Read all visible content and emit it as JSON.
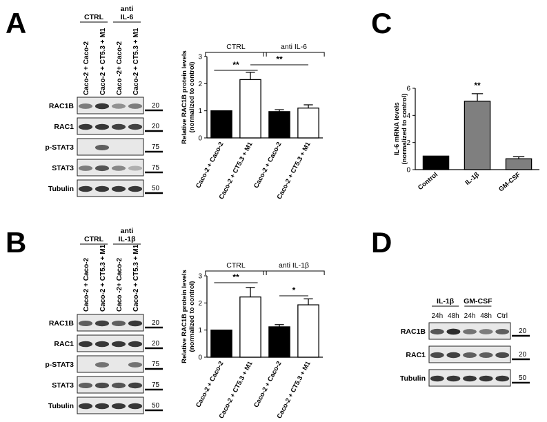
{
  "panels": {
    "A": {
      "letter": "A",
      "group_labels": [
        "CTRL",
        "anti\nIL-6"
      ],
      "lane_labels": [
        "Caco-2 + Caco-2",
        "Caco-2 + CT5.3 + M1",
        "Caco -2+ Caco-2",
        "Caco-2 + CT5.3 + M1"
      ],
      "blots": [
        {
          "label": "RAC1B",
          "marker": "20"
        },
        {
          "label": "RAC1",
          "marker": "20"
        },
        {
          "label": "p-STAT3",
          "marker": "75"
        },
        {
          "label": "STAT3",
          "marker": "75"
        },
        {
          "label": "Tubulin",
          "marker": "50"
        }
      ]
    },
    "B": {
      "letter": "B",
      "group_labels": [
        "CTRL",
        "anti\nIL-1β"
      ],
      "lane_labels": [
        "Caco-2 + Caco-2",
        "Caco-2 + CT5.3 + M1",
        "Caco -2+ Caco-2",
        "Caco-2 + CT5.3 + M1"
      ],
      "blots": [
        {
          "label": "RAC1B",
          "marker": "20"
        },
        {
          "label": "RAC1",
          "marker": "20"
        },
        {
          "label": "p-STAT3",
          "marker": "75"
        },
        {
          "label": "STAT3",
          "marker": "75"
        },
        {
          "label": "Tubulin",
          "marker": "50"
        }
      ]
    },
    "C": {
      "letter": "C"
    },
    "D": {
      "letter": "D",
      "group_labels": [
        "IL-1β",
        "GM-CSF"
      ],
      "lane_labels": [
        "24h",
        "48h",
        "24h",
        "48h",
        "Ctrl"
      ],
      "blots": [
        {
          "label": "RAC1B",
          "marker": "20"
        },
        {
          "label": "RAC1",
          "marker": "20"
        },
        {
          "label": "Tubulin",
          "marker": "50"
        }
      ]
    }
  },
  "chart_data": [
    {
      "id": "A",
      "type": "bar",
      "categories": [
        "Caco-2 + Caco-2",
        "Caco-2 + CT5.3 + M1",
        "Caco-2 + Caco-2",
        "Caco-2 + CT5.3 + M1"
      ],
      "values": [
        1.0,
        2.15,
        0.97,
        1.1
      ],
      "errors": [
        0,
        0.27,
        0.07,
        0.12
      ],
      "fill": [
        "#000000",
        "#ffffff",
        "#000000",
        "#ffffff"
      ],
      "ylabel": "Relative RAC1B protein levels\n(normalized to control)",
      "ylim": [
        0,
        3
      ],
      "yticks": [
        0,
        1,
        2,
        3
      ],
      "groups": [
        {
          "label": "CTRL",
          "span": [
            0,
            1
          ]
        },
        {
          "label": "anti IL-6",
          "span": [
            2,
            3
          ]
        }
      ],
      "significance": [
        {
          "from": 0,
          "to": 1,
          "label": "**"
        },
        {
          "from": 1,
          "to": 3,
          "label": "**"
        }
      ]
    },
    {
      "id": "B",
      "type": "bar",
      "categories": [
        "Caco-2 + Caco-2",
        "Caco-2 + CT5.3 + M1",
        "Caco-2 + Caco-2",
        "Caco-2 + CT5.3 + M1"
      ],
      "values": [
        1.0,
        2.22,
        1.12,
        1.93
      ],
      "errors": [
        0,
        0.35,
        0.08,
        0.22
      ],
      "fill": [
        "#000000",
        "#ffffff",
        "#000000",
        "#ffffff"
      ],
      "ylabel": "Relative RAC1B protein levels\n(normalized to control)",
      "ylim": [
        0,
        3
      ],
      "yticks": [
        0,
        1,
        2,
        3
      ],
      "groups": [
        {
          "label": "CTRL",
          "span": [
            0,
            1
          ]
        },
        {
          "label": "anti IL-1β",
          "span": [
            2,
            3
          ]
        }
      ],
      "significance": [
        {
          "from": 0,
          "to": 1,
          "label": "**"
        },
        {
          "from": 2,
          "to": 3,
          "label": "*"
        }
      ]
    },
    {
      "id": "C",
      "type": "bar",
      "categories": [
        "Control",
        "IL-1β",
        "GM-CSF"
      ],
      "values": [
        1.0,
        5.05,
        0.8
      ],
      "errors": [
        0,
        0.55,
        0.15
      ],
      "fill": [
        "#000000",
        "#7f7f7f",
        "#7f7f7f"
      ],
      "ylabel": "IL-6 mRNA levels\n(normalized to control)",
      "ylim": [
        0,
        6
      ],
      "yticks": [
        0,
        2,
        4,
        6
      ],
      "bar_labels": [
        "",
        "**",
        ""
      ]
    }
  ]
}
